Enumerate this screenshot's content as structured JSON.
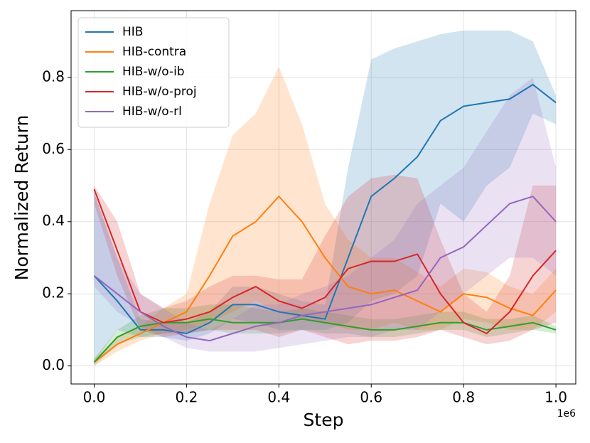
{
  "chart_data": {
    "type": "line",
    "xlabel": "Step",
    "ylabel": "Normalized Return",
    "x_offset_label": "1e6",
    "x": [
      0,
      0.05,
      0.1,
      0.15,
      0.2,
      0.25,
      0.3,
      0.35,
      0.4,
      0.45,
      0.5,
      0.55,
      0.6,
      0.65,
      0.7,
      0.75,
      0.8,
      0.85,
      0.9,
      0.95,
      1.0
    ],
    "series": [
      {
        "name": "HIB",
        "color": "#1f77b4",
        "values": [
          0.25,
          0.18,
          0.1,
          0.1,
          0.09,
          0.12,
          0.17,
          0.17,
          0.15,
          0.14,
          0.13,
          0.3,
          0.47,
          0.52,
          0.58,
          0.68,
          0.72,
          0.73,
          0.74,
          0.78,
          0.73
        ],
        "lower": [
          0.01,
          0.1,
          0.08,
          0.08,
          0.07,
          0.09,
          0.13,
          0.12,
          0.1,
          0.1,
          0.1,
          0.12,
          0.18,
          0.2,
          0.25,
          0.45,
          0.4,
          0.5,
          0.55,
          0.7,
          0.67
        ],
        "upper": [
          0.48,
          0.3,
          0.13,
          0.12,
          0.12,
          0.15,
          0.22,
          0.22,
          0.2,
          0.18,
          0.17,
          0.55,
          0.85,
          0.88,
          0.9,
          0.92,
          0.93,
          0.93,
          0.93,
          0.9,
          0.75
        ]
      },
      {
        "name": "HIB-contra",
        "color": "#ff7f0e",
        "values": [
          0.01,
          0.06,
          0.09,
          0.12,
          0.15,
          0.25,
          0.36,
          0.4,
          0.47,
          0.4,
          0.3,
          0.22,
          0.2,
          0.21,
          0.18,
          0.15,
          0.2,
          0.19,
          0.16,
          0.14,
          0.21
        ],
        "lower": [
          0.0,
          0.04,
          0.07,
          0.09,
          0.1,
          0.12,
          0.15,
          0.18,
          0.15,
          0.13,
          0.12,
          0.1,
          0.1,
          0.12,
          0.1,
          0.1,
          0.13,
          0.12,
          0.1,
          0.1,
          0.15
        ],
        "upper": [
          0.02,
          0.08,
          0.11,
          0.16,
          0.2,
          0.45,
          0.64,
          0.7,
          0.83,
          0.67,
          0.45,
          0.35,
          0.3,
          0.3,
          0.26,
          0.22,
          0.27,
          0.26,
          0.22,
          0.2,
          0.27
        ]
      },
      {
        "name": "HIB-w/o-ib",
        "color": "#2ca02c",
        "values": [
          0.01,
          0.08,
          0.11,
          0.12,
          0.12,
          0.13,
          0.12,
          0.12,
          0.12,
          0.13,
          0.12,
          0.11,
          0.1,
          0.1,
          0.11,
          0.12,
          0.12,
          0.1,
          0.11,
          0.12,
          0.1
        ],
        "lower": [
          0.0,
          0.06,
          0.08,
          0.09,
          0.09,
          0.1,
          0.09,
          0.09,
          0.09,
          0.1,
          0.09,
          0.09,
          0.08,
          0.08,
          0.09,
          0.1,
          0.1,
          0.08,
          0.09,
          0.1,
          0.09
        ],
        "upper": [
          0.02,
          0.1,
          0.14,
          0.16,
          0.16,
          0.17,
          0.17,
          0.16,
          0.15,
          0.16,
          0.15,
          0.14,
          0.13,
          0.13,
          0.14,
          0.15,
          0.15,
          0.13,
          0.13,
          0.14,
          0.11
        ]
      },
      {
        "name": "HIB-w/o-proj",
        "color": "#d62728",
        "values": [
          0.49,
          0.32,
          0.15,
          0.12,
          0.13,
          0.15,
          0.19,
          0.22,
          0.18,
          0.16,
          0.19,
          0.27,
          0.29,
          0.29,
          0.31,
          0.2,
          0.12,
          0.09,
          0.15,
          0.25,
          0.32
        ],
        "lower": [
          0.45,
          0.25,
          0.1,
          0.08,
          0.09,
          0.1,
          0.1,
          0.1,
          0.08,
          0.1,
          0.08,
          0.06,
          0.07,
          0.07,
          0.08,
          0.1,
          0.08,
          0.06,
          0.07,
          0.1,
          0.12
        ],
        "upper": [
          0.5,
          0.4,
          0.2,
          0.16,
          0.18,
          0.22,
          0.25,
          0.25,
          0.24,
          0.24,
          0.36,
          0.47,
          0.52,
          0.53,
          0.52,
          0.35,
          0.2,
          0.15,
          0.25,
          0.5,
          0.5
        ]
      },
      {
        "name": "HIB-w/o-rl",
        "color": "#9467bd",
        "values": [
          0.25,
          0.2,
          0.15,
          0.11,
          0.08,
          0.07,
          0.09,
          0.11,
          0.12,
          0.14,
          0.15,
          0.16,
          0.17,
          0.19,
          0.21,
          0.3,
          0.33,
          0.39,
          0.45,
          0.47,
          0.4
        ],
        "lower": [
          0.22,
          0.15,
          0.11,
          0.08,
          0.05,
          0.04,
          0.04,
          0.04,
          0.05,
          0.06,
          0.07,
          0.08,
          0.08,
          0.1,
          0.1,
          0.15,
          0.2,
          0.25,
          0.3,
          0.3,
          0.25
        ],
        "upper": [
          0.48,
          0.3,
          0.2,
          0.16,
          0.12,
          0.1,
          0.13,
          0.17,
          0.17,
          0.2,
          0.22,
          0.25,
          0.3,
          0.35,
          0.45,
          0.5,
          0.55,
          0.65,
          0.75,
          0.8,
          0.55
        ]
      }
    ],
    "xlim": [
      -0.05,
      1.043
    ],
    "ylim": [
      -0.05,
      0.985
    ],
    "xticks": [
      {
        "value": 0,
        "label": "0.0"
      },
      0.2,
      0.4,
      0.6,
      0.8,
      {
        "value": 1,
        "label": "1.0"
      }
    ],
    "yticks": [
      {
        "value": 0,
        "label": "0.0"
      },
      0.2,
      0.4,
      0.6,
      0.8
    ],
    "grid": true,
    "legend": "upper left"
  }
}
